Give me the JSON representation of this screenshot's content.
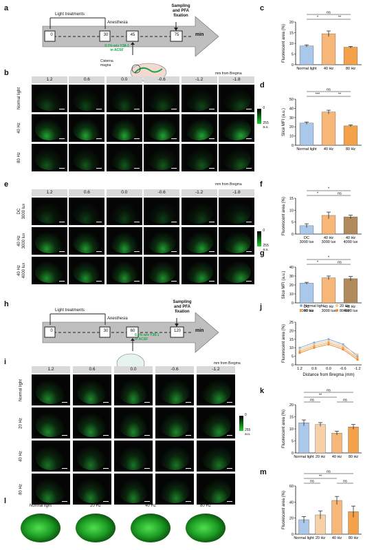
{
  "panels": {
    "a": {
      "label": "a",
      "light_treatments": "Light treatments",
      "anesthesia": "Anesthesia",
      "sampling": "Sampling\nand PFA\nfixation",
      "ticks": [
        "0",
        "30",
        "45",
        "75"
      ],
      "unit": "min",
      "injection": "0.1% w/v Y38-1\nin ACSF",
      "site": "Cisterna\nmagna"
    },
    "b": {
      "label": "b",
      "headers": [
        "1.2",
        "0.6",
        "0.0",
        "-0.6",
        "-1.2",
        "-1.8"
      ],
      "bregma": "mm from Bregma",
      "rows": [
        "Normal light",
        "40 Hz",
        "80 Hz"
      ],
      "colorbar": {
        "min": "0",
        "max": "255",
        "unit": "a.u."
      }
    },
    "e": {
      "label": "e",
      "headers": [
        "1.2",
        "0.6",
        "0.0",
        "-0.6",
        "-1.2",
        "-1.8"
      ],
      "bregma": "mm from Bregma",
      "rows": [
        "DC\n3000 lux",
        "40 Hz\n3000 lux",
        "40 Hz\n4000 lux"
      ],
      "colorbar": {
        "min": "0",
        "max": "255",
        "unit": "a.u."
      }
    },
    "h": {
      "label": "h",
      "light_treatments": "Light treatments",
      "anesthesia": "Anesthesia",
      "sampling": "Sampling\nand PFA\nfixation",
      "ticks": [
        "0",
        "30",
        "60",
        "120"
      ],
      "unit": "min",
      "injection": "0.1% w/v Y38-1\nin ACSF"
    },
    "i": {
      "label": "i",
      "headers": [
        "1.2",
        "0.6",
        "0.0",
        "-0.6",
        "-1.2"
      ],
      "bregma": "mm from Bregma",
      "rows": [
        "Normal light",
        "20 Hz",
        "40 Hz",
        "80 Hz"
      ],
      "colorbar": {
        "min": "0",
        "max": "255",
        "unit": "a.u."
      }
    },
    "l": {
      "label": "l",
      "headers": [
        "Normal light",
        "20 Hz",
        "40 Hz",
        "80 Hz"
      ]
    }
  },
  "chart_data": [
    {
      "panel": "c",
      "type": "bar",
      "categories": [
        "Normal light",
        "40 Hz",
        "80 Hz"
      ],
      "values": [
        8.8,
        14.5,
        8.2
      ],
      "errors": [
        0.5,
        1.3,
        0.4
      ],
      "colors": [
        "#a9c8ea",
        "#f7b778",
        "#f3a24a"
      ],
      "ylabel": "Fluorescent area (%)",
      "ylim": [
        0,
        20
      ],
      "yticks": [
        "0",
        "5",
        "10",
        "15",
        "20"
      ],
      "sig": [
        {
          "text": "ns",
          "from": 0,
          "to": 2,
          "level": 2
        },
        {
          "text": "*",
          "from": 0,
          "to": 1,
          "level": 1
        },
        {
          "text": "**",
          "from": 1,
          "to": 2,
          "level": 1
        }
      ]
    },
    {
      "panel": "d",
      "type": "bar",
      "categories": [
        "Normal light",
        "40 Hz",
        "80 Hz"
      ],
      "values": [
        24,
        36,
        21
      ],
      "errors": [
        1.2,
        2.0,
        1.0
      ],
      "colors": [
        "#a9c8ea",
        "#f7b778",
        "#f3a24a"
      ],
      "ylabel": "Slice MFI (a.u.)",
      "ylim": [
        0,
        50
      ],
      "yticks": [
        "0",
        "10",
        "20",
        "30",
        "40",
        "50"
      ],
      "sig": [
        {
          "text": "ns",
          "from": 0,
          "to": 2,
          "level": 2
        },
        {
          "text": "***",
          "from": 0,
          "to": 1,
          "level": 1
        },
        {
          "text": "**",
          "from": 1,
          "to": 2,
          "level": 1
        }
      ]
    },
    {
      "panel": "f",
      "type": "bar",
      "categories": [
        "DC\n3000 lux",
        "40 Hz\n3000 lux",
        "40 Hz\n4000 lux"
      ],
      "values": [
        3.5,
        7.8,
        7.2
      ],
      "errors": [
        0.8,
        1.4,
        0.7
      ],
      "colors": [
        "#a9c8ea",
        "#f7b778",
        "#b08a5a"
      ],
      "ylabel": "Fluorescent area (%)",
      "ylim": [
        0,
        15
      ],
      "yticks": [
        "0",
        "5",
        "10",
        "15"
      ],
      "sig": [
        {
          "text": "*",
          "from": 0,
          "to": 2,
          "level": 2
        },
        {
          "text": "*",
          "from": 0,
          "to": 1,
          "level": 1
        },
        {
          "text": "ns",
          "from": 1,
          "to": 2,
          "level": 1
        }
      ]
    },
    {
      "panel": "g",
      "type": "bar",
      "categories": [
        "DC\n3000 lux",
        "40 Hz\n3000 lux",
        "40 Hz\n4000 lux"
      ],
      "values": [
        22,
        28,
        27
      ],
      "errors": [
        1.0,
        2.0,
        2.5
      ],
      "colors": [
        "#a9c8ea",
        "#f7b778",
        "#b08a5a"
      ],
      "ylabel": "Slice MFI (a.u.)",
      "ylim": [
        0,
        40
      ],
      "yticks": [
        "0",
        "10",
        "20",
        "30",
        "40"
      ],
      "sig": [
        {
          "text": "*",
          "from": 0,
          "to": 2,
          "level": 2
        },
        {
          "text": "*",
          "from": 0,
          "to": 1,
          "level": 1
        },
        {
          "text": "ns",
          "from": 1,
          "to": 2,
          "level": 1
        }
      ]
    },
    {
      "panel": "j",
      "type": "line",
      "x": [
        "1.2",
        "0.6",
        "0.0",
        "-0.6",
        "-1.2"
      ],
      "series": [
        {
          "name": "Normal light",
          "color": "#7fb0e0",
          "values": [
            10,
            13,
            15,
            12,
            5
          ]
        },
        {
          "name": "20 Hz",
          "color": "#f7c38d",
          "values": [
            9,
            12,
            14,
            11,
            6
          ]
        },
        {
          "name": "40 Hz",
          "color": "#f4a555",
          "values": [
            8,
            11,
            13,
            10,
            4
          ]
        },
        {
          "name": "80 Hz",
          "color": "#e98a2c",
          "values": [
            7,
            10,
            12,
            9,
            3
          ]
        }
      ],
      "ylabel": "Fluorescent area (%)",
      "xlabel": "Distance from Bregma (mm)",
      "ylim": [
        0,
        25
      ],
      "yticks": [
        "0",
        "5",
        "10",
        "15",
        "20",
        "25"
      ]
    },
    {
      "panel": "k",
      "type": "bar",
      "categories": [
        "Normal light",
        "20 Hz",
        "40 Hz",
        "80 Hz"
      ],
      "values": [
        12.5,
        11.8,
        8.2,
        10.8
      ],
      "errors": [
        1.2,
        0.8,
        0.8,
        1.0
      ],
      "colors": [
        "#a9c8ea",
        "#f7d0a8",
        "#f7b778",
        "#f3a24a"
      ],
      "ylabel": "Fluorescent area (%)",
      "ylim": [
        0,
        20
      ],
      "yticks": [
        "0",
        "5",
        "10",
        "15",
        "20"
      ],
      "sig": [
        {
          "text": "ns",
          "from": 0,
          "to": 3,
          "level": 3
        },
        {
          "text": "**",
          "from": 0,
          "to": 2,
          "level": 2
        },
        {
          "text": "ns",
          "from": 0,
          "to": 1,
          "level": 1
        },
        {
          "text": "ns",
          "from": 2,
          "to": 3,
          "level": 1
        }
      ]
    },
    {
      "panel": "m",
      "type": "bar",
      "categories": [
        "Normal light",
        "20 Hz",
        "40 Hz",
        "80 Hz"
      ],
      "values": [
        18,
        24,
        42,
        28
      ],
      "errors": [
        4,
        5,
        5,
        7
      ],
      "colors": [
        "#a9c8ea",
        "#f7d0a8",
        "#f7b778",
        "#f3a24a"
      ],
      "ylabel": "Fluorescent area (%)",
      "ylim": [
        0,
        60
      ],
      "yticks": [
        "0",
        "20",
        "40",
        "60"
      ],
      "sig": [
        {
          "text": "ns",
          "from": 0,
          "to": 3,
          "level": 3
        },
        {
          "text": "**",
          "from": 0,
          "to": 2,
          "level": 2
        },
        {
          "text": "ns",
          "from": 0,
          "to": 1,
          "level": 1
        },
        {
          "text": "ns",
          "from": 2,
          "to": 3,
          "level": 1
        }
      ]
    }
  ]
}
